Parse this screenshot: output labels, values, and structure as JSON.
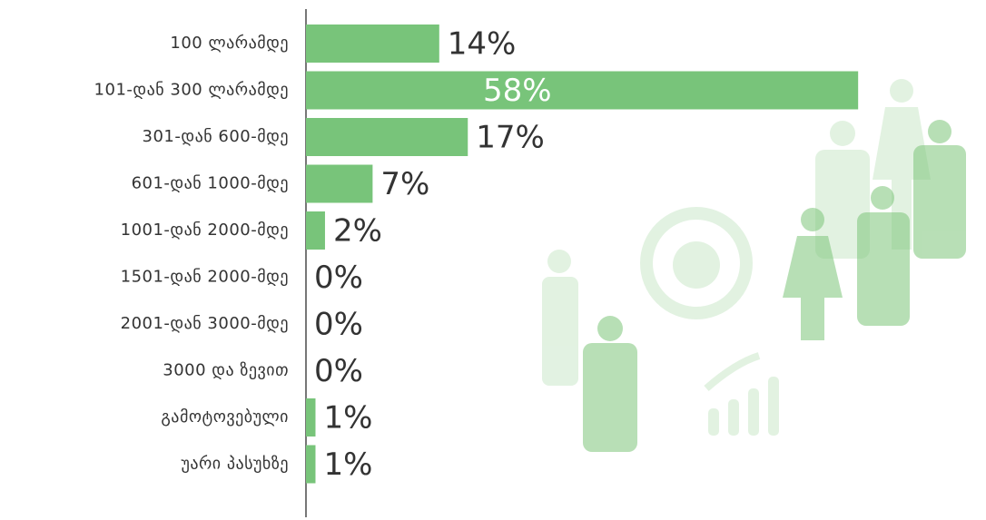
{
  "chart_data": {
    "type": "bar",
    "orientation": "horizontal",
    "categories": [
      "100 ლარამდე",
      "101-დან 300 ლარამდე",
      "301-დან 600-მდე",
      "601-დან 1000-მდე",
      "1001-დან 2000-მდე",
      "1501-დან 2000-მდე",
      "2001-დან 3000-მდე",
      "3000 და ზევით",
      "გამოტოვებული",
      "უარი პასუხზე"
    ],
    "values": [
      14,
      58,
      17,
      7,
      2,
      0,
      0,
      0,
      1,
      1
    ],
    "value_labels": [
      "14%",
      "58%",
      "17%",
      "7%",
      "2%",
      "0%",
      "0%",
      "0%",
      "1%",
      "1%"
    ],
    "color": "#78c47a",
    "xlim": [
      0,
      70
    ]
  }
}
